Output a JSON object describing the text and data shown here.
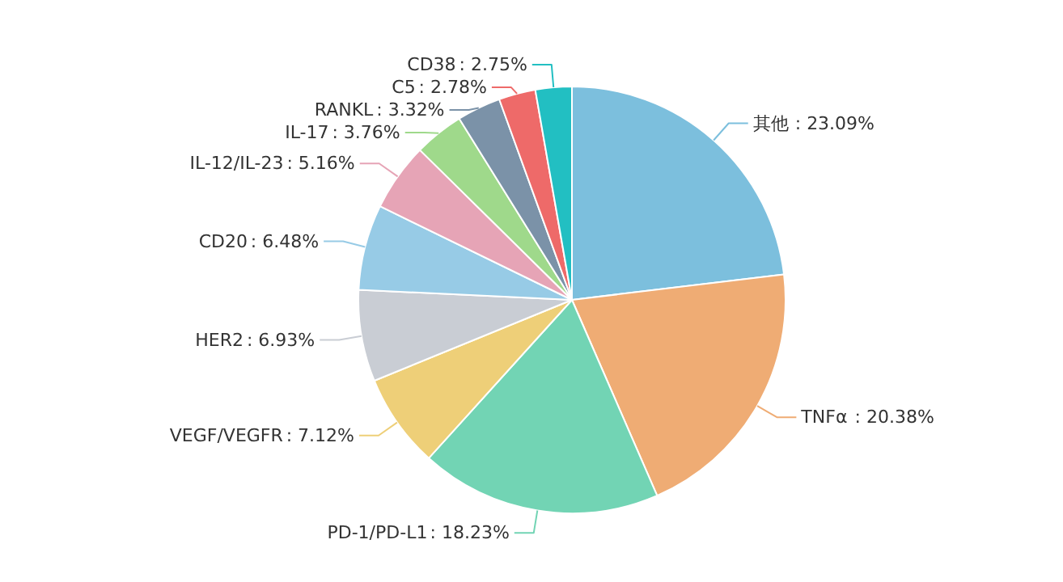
{
  "chart_data": {
    "type": "pie",
    "categories": [
      "其他",
      "TNFα",
      "PD-1/PD-L1",
      "VEGF/VEGFR",
      "HER2",
      "CD20",
      "IL-12/IL-23",
      "IL-17",
      "RANKL",
      "C5",
      "CD38"
    ],
    "values": [
      23.09,
      20.38,
      18.23,
      7.12,
      6.93,
      6.48,
      5.16,
      3.76,
      3.32,
      2.78,
      2.75
    ],
    "colors": [
      "#7cbfdd",
      "#efac74",
      "#72d4b4",
      "#eecf78",
      "#c9cdd4",
      "#97cbe6",
      "#e6a4b6",
      "#9fd98b",
      "#7b92a8",
      "#ee6a69",
      "#22bfc2"
    ],
    "value_labels": [
      ": 23.09%",
      ": 20.38%",
      ": 18.23%",
      ": 7.12%",
      ": 6.93%",
      ": 6.48%",
      ": 5.16%",
      ": 3.76%",
      ": 3.32%",
      ": 2.78%",
      ": 2.75%"
    ],
    "legend": false
  }
}
